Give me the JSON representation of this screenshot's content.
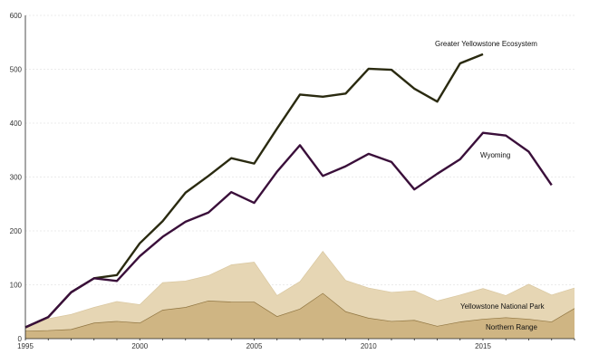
{
  "chart_data": {
    "type": "line",
    "title": "",
    "xlabel": "",
    "ylabel": "",
    "xlim": [
      1995,
      2019
    ],
    "ylim": [
      0,
      600
    ],
    "grid": true,
    "x_ticks": [
      1995,
      2000,
      2005,
      2010,
      2015
    ],
    "y_ticks": [
      0,
      100,
      200,
      300,
      400,
      500,
      600
    ],
    "series": [
      {
        "name": "Greater Yellowstone Ecosystem",
        "style": "line",
        "color": "#2a2a10",
        "x": [
          1995,
          1996,
          1997,
          1998,
          1999,
          2000,
          2001,
          2002,
          2003,
          2004,
          2005,
          2006,
          2007,
          2008,
          2009,
          2010,
          2011,
          2012,
          2013,
          2014,
          2015
        ],
        "values": [
          21,
          40,
          86,
          112,
          118,
          177,
          218,
          271,
          302,
          335,
          325,
          390,
          453,
          449,
          455,
          501,
          499,
          464,
          440,
          511,
          528
        ]
      },
      {
        "name": "Wyoming",
        "style": "line",
        "color": "#3a0f3a",
        "x": [
          1995,
          1996,
          1997,
          1998,
          1999,
          2000,
          2001,
          2002,
          2003,
          2004,
          2005,
          2006,
          2007,
          2008,
          2009,
          2010,
          2011,
          2012,
          2013,
          2014,
          2015,
          2016,
          2017,
          2018
        ],
        "values": [
          21,
          40,
          86,
          112,
          107,
          153,
          189,
          217,
          234,
          272,
          252,
          310,
          359,
          302,
          320,
          343,
          328,
          277,
          306,
          333,
          382,
          377,
          347,
          285
        ]
      },
      {
        "name": "Yellowstone National Park",
        "style": "area",
        "color": "#e6d6b4",
        "x": [
          1995,
          1996,
          1997,
          1998,
          1999,
          2000,
          2001,
          2002,
          2003,
          2004,
          2005,
          2006,
          2007,
          2008,
          2009,
          2010,
          2011,
          2012,
          2013,
          2014,
          2015,
          2016,
          2017,
          2018,
          2019
        ],
        "values": [
          21,
          37,
          45,
          58,
          69,
          63,
          104,
          107,
          117,
          137,
          142,
          80,
          106,
          162,
          108,
          94,
          86,
          89,
          70,
          81,
          93,
          80,
          101,
          81,
          94
        ]
      },
      {
        "name": "Northern Range",
        "style": "area",
        "color": "#cfb583",
        "x": [
          1995,
          1996,
          1997,
          1998,
          1999,
          2000,
          2001,
          2002,
          2003,
          2004,
          2005,
          2006,
          2007,
          2008,
          2009,
          2010,
          2011,
          2012,
          2013,
          2014,
          2015,
          2016,
          2017,
          2018,
          2019
        ],
        "values": [
          14,
          15,
          17,
          29,
          32,
          29,
          53,
          58,
          70,
          68,
          68,
          41,
          55,
          84,
          50,
          38,
          32,
          34,
          23,
          31,
          36,
          39,
          36,
          31,
          56
        ]
      }
    ]
  }
}
